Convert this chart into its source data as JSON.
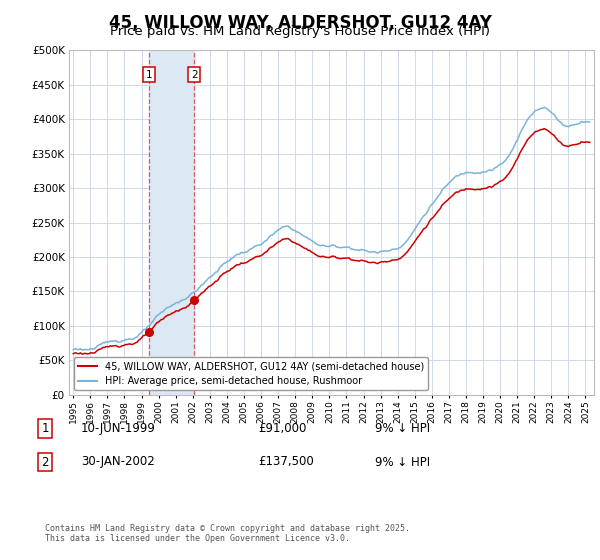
{
  "title": "45, WILLOW WAY, ALDERSHOT, GU12 4AY",
  "subtitle": "Price paid vs. HM Land Registry's House Price Index (HPI)",
  "ylim": [
    0,
    500000
  ],
  "yticks": [
    0,
    50000,
    100000,
    150000,
    200000,
    250000,
    300000,
    350000,
    400000,
    450000,
    500000
  ],
  "ytick_labels": [
    "£0",
    "£50K",
    "£100K",
    "£150K",
    "£200K",
    "£250K",
    "£300K",
    "£350K",
    "£400K",
    "£450K",
    "£500K"
  ],
  "hpi_color": "#7ab4d8",
  "price_color": "#cc0000",
  "background_color": "#ffffff",
  "grid_color": "#d0d8e8",
  "vline1_x": 1999.44,
  "vline2_x": 2002.08,
  "shade_color": "#dce9f5",
  "marker1_x": 1999.44,
  "marker1_y": 91000,
  "marker2_x": 2002.08,
  "marker2_y": 137500,
  "legend_label_red": "45, WILLOW WAY, ALDERSHOT, GU12 4AY (semi-detached house)",
  "legend_label_blue": "HPI: Average price, semi-detached house, Rushmoor",
  "annotation1_label": "1",
  "annotation2_label": "2",
  "table_row1": [
    "1",
    "10-JUN-1999",
    "£91,000",
    "9% ↓ HPI"
  ],
  "table_row2": [
    "2",
    "30-JAN-2002",
    "£137,500",
    "9% ↓ HPI"
  ],
  "footer": "Contains HM Land Registry data © Crown copyright and database right 2025.\nThis data is licensed under the Open Government Licence v3.0.",
  "title_fontsize": 12,
  "subtitle_fontsize": 9.5,
  "xlim_min": 1994.75,
  "xlim_max": 2025.5
}
